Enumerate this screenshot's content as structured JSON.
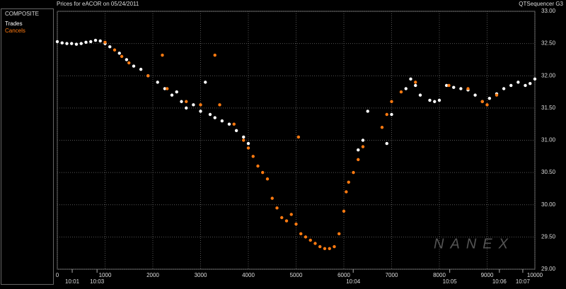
{
  "chart_data": {
    "type": "scatter",
    "title": "Prices for  eACOR  on  05/24/2011",
    "source": "QTSequencer G3",
    "panel_title": "COMPOSITE",
    "watermark": "NANEX",
    "xlim": [
      0,
      10000
    ],
    "xticks": [
      0,
      1000,
      2000,
      3000,
      4000,
      5000,
      6000,
      7000,
      8000,
      9000,
      10000
    ],
    "time_ticks": [
      {
        "value": 312,
        "label": "10:01"
      },
      {
        "value": 832,
        "label": "10:03"
      },
      {
        "value": 6196,
        "label": "10:04"
      },
      {
        "value": 8217,
        "label": "10:05"
      },
      {
        "value": 9257,
        "label": "10:06"
      },
      {
        "value": 9747,
        "label": "10:07"
      }
    ],
    "ylim": [
      29,
      33
    ],
    "yticks": [
      {
        "value": 29,
        "label": "29.00"
      },
      {
        "value": 29.5,
        "label": "29.50"
      },
      {
        "value": 30,
        "label": "30.00"
      },
      {
        "value": 30.5,
        "label": "30.50"
      },
      {
        "value": 31,
        "label": "31.00"
      },
      {
        "value": 31.5,
        "label": "31.50"
      },
      {
        "value": 32,
        "label": "32.00"
      },
      {
        "value": 32.5,
        "label": "32.50"
      },
      {
        "value": 33,
        "label": "33.00"
      }
    ],
    "grid": true,
    "series": [
      {
        "name": "Trades",
        "color": "#ffffff",
        "x": [
          0,
          100,
          200,
          300,
          400,
          500,
          600,
          700,
          800,
          900,
          1000,
          1100,
          1300,
          1450,
          1600,
          1750,
          1900,
          2100,
          2250,
          2400,
          2500,
          2600,
          2700,
          2850,
          3000,
          3100,
          3200,
          3300,
          3450,
          3600,
          3750,
          3900,
          4000,
          6300,
          6400,
          6500,
          6900,
          7000,
          7300,
          7400,
          7500,
          7600,
          7800,
          7900,
          8000,
          8150,
          8300,
          8450,
          8600,
          8750,
          8900,
          9050,
          9200,
          9350,
          9500,
          9650,
          9800,
          9900,
          10000
        ],
        "values": [
          32.53,
          32.51,
          32.5,
          32.5,
          32.49,
          32.5,
          32.52,
          32.53,
          32.55,
          32.54,
          32.5,
          32.45,
          32.35,
          32.25,
          32.15,
          32.1,
          32.0,
          31.9,
          31.8,
          31.7,
          31.75,
          31.6,
          31.5,
          31.55,
          31.45,
          31.9,
          31.4,
          31.35,
          31.3,
          31.25,
          31.15,
          31.05,
          30.95,
          30.85,
          31.0,
          31.45,
          30.95,
          31.4,
          31.8,
          31.95,
          31.85,
          31.7,
          31.62,
          31.6,
          31.62,
          31.85,
          31.82,
          31.8,
          31.78,
          31.7,
          31.6,
          31.65,
          31.72,
          31.8,
          31.85,
          31.9,
          31.85,
          31.88,
          31.95
        ]
      },
      {
        "name": "Cancels",
        "color": "#ff7a10",
        "x": [
          1000,
          1200,
          1350,
          1500,
          1900,
          2200,
          2300,
          2700,
          3000,
          3300,
          3400,
          3700,
          3900,
          4000,
          4100,
          4200,
          4300,
          4400,
          4500,
          4600,
          4700,
          4800,
          4900,
          5000,
          5050,
          5100,
          5200,
          5300,
          5400,
          5500,
          5600,
          5700,
          5800,
          5900,
          6000,
          6050,
          6100,
          6200,
          6300,
          6400,
          6800,
          6900,
          7000,
          7200,
          7500,
          8200,
          8600,
          8900,
          9000,
          9200
        ],
        "values": [
          32.52,
          32.4,
          32.3,
          32.2,
          32.0,
          32.32,
          31.8,
          31.6,
          31.55,
          32.32,
          31.55,
          31.25,
          31.0,
          30.88,
          30.75,
          30.6,
          30.5,
          30.4,
          30.1,
          29.95,
          29.8,
          29.75,
          29.85,
          29.7,
          31.05,
          29.55,
          29.5,
          29.45,
          29.4,
          29.35,
          29.32,
          29.32,
          29.35,
          29.55,
          29.9,
          30.2,
          30.35,
          30.5,
          30.7,
          30.9,
          31.2,
          31.4,
          31.6,
          31.75,
          31.9,
          31.85,
          31.8,
          31.6,
          31.55,
          31.7
        ]
      }
    ]
  }
}
